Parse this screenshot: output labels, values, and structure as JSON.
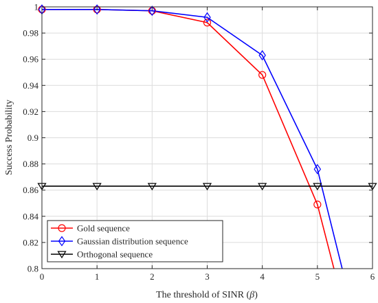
{
  "chart_data": {
    "type": "line",
    "xlabel_main": "The threshold of SINR (",
    "xlabel_symbol": "β",
    "xlabel_end": ")",
    "ylabel": "Success Probability",
    "xlim": [
      0,
      6
    ],
    "ylim": [
      0.8,
      1.0
    ],
    "xticks": [
      "0",
      "1",
      "2",
      "3",
      "4",
      "5",
      "6"
    ],
    "yticks": [
      "0.8",
      "0.82",
      "0.84",
      "0.86",
      "0.88",
      "0.9",
      "0.92",
      "0.94",
      "0.96",
      "0.98",
      "1"
    ],
    "grid": true,
    "legend_position": "bottom-left",
    "series": [
      {
        "name": "Gold sequence",
        "color": "#ff0000",
        "marker": "circle",
        "x": [
          0,
          1,
          2,
          3,
          4,
          5,
          5.3
        ],
        "y": [
          0.998,
          0.998,
          0.997,
          0.988,
          0.948,
          0.849,
          0.8
        ],
        "marker_count": 6
      },
      {
        "name": "Gaussian distribution sequence",
        "color": "#0000ff",
        "marker": "diamond",
        "x": [
          0,
          1,
          2,
          3,
          4,
          5,
          5.45
        ],
        "y": [
          0.998,
          0.998,
          0.997,
          0.992,
          0.963,
          0.876,
          0.8
        ],
        "marker_count": 6
      },
      {
        "name": "Orthogonal sequence",
        "color": "#000000",
        "marker": "triangle-down",
        "x": [
          0,
          1,
          2,
          3,
          4,
          5,
          6
        ],
        "y": [
          0.863,
          0.863,
          0.863,
          0.863,
          0.863,
          0.863,
          0.863
        ],
        "marker_count": 7
      }
    ]
  }
}
